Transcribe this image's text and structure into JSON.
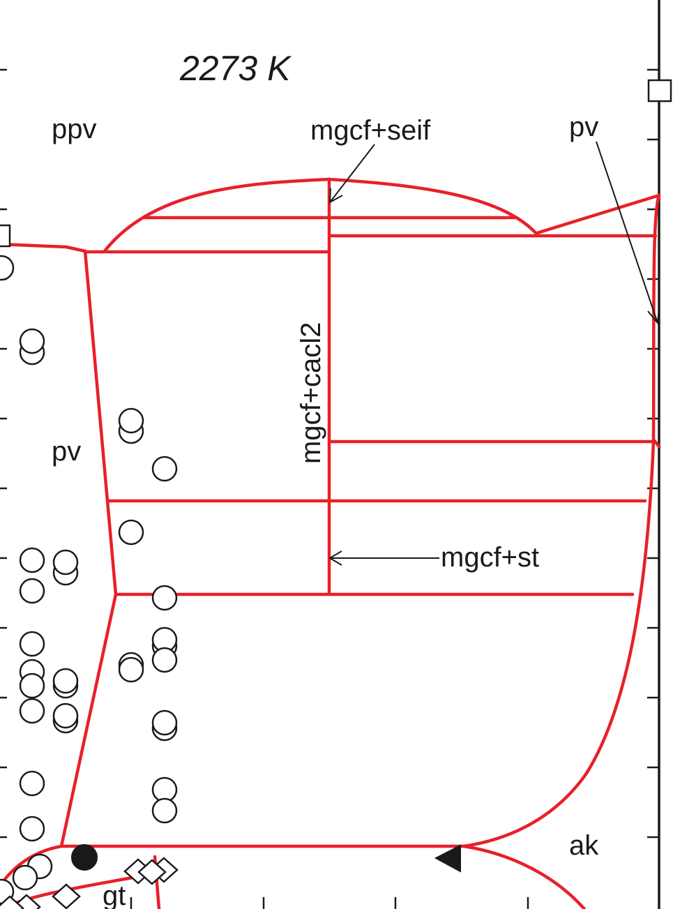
{
  "title": "2273 K",
  "phase_labels": {
    "ppv": "ppv",
    "pv_left": "pv",
    "pv_right": "pv",
    "mgcf_seif": "mgcf+seif",
    "mgcf_cacl2": "mgcf+cacl2",
    "mgcf_st": "mgcf+st",
    "ak": "ak",
    "gt": "gt"
  },
  "colors": {
    "boundary": "#e8202a",
    "frame": "#1a1a1a",
    "marker": "#1a1a1a"
  },
  "marker_types": [
    "open-circle",
    "open-square",
    "open-diamond",
    "filled-circle",
    "filled-triangle"
  ]
}
